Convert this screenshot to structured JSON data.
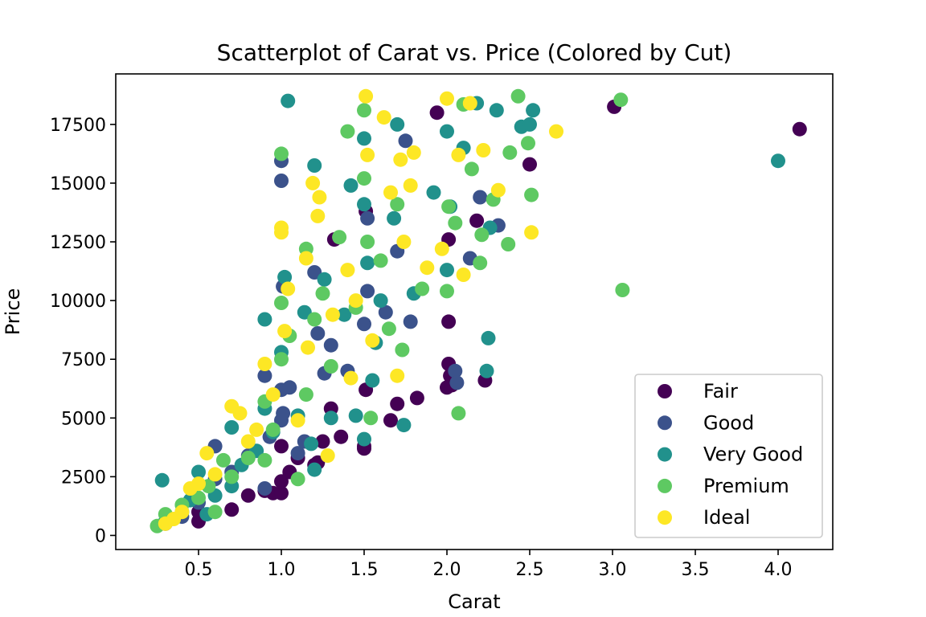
{
  "chart_data": {
    "type": "scatter",
    "title": "Scatterplot of Carat vs. Price (Colored by Cut)",
    "xlabel": "Carat",
    "ylabel": "Price",
    "xlim": [
      0.0,
      4.33
    ],
    "ylim": [
      -600,
      19650
    ],
    "xticks": [
      0.5,
      1.0,
      1.5,
      2.0,
      2.5,
      3.0,
      3.5,
      4.0
    ],
    "xtick_labels": [
      "0.5",
      "1.0",
      "1.5",
      "2.0",
      "2.5",
      "3.0",
      "3.5",
      "4.0"
    ],
    "yticks": [
      0,
      2500,
      5000,
      7500,
      10000,
      12500,
      15000,
      17500
    ],
    "ytick_labels": [
      "0",
      "2500",
      "5000",
      "7500",
      "10000",
      "12500",
      "15000",
      "17500"
    ],
    "grid": false,
    "legend_position": "lower-right",
    "series": [
      {
        "name": "Fair",
        "color": "#440154",
        "points": [
          [
            0.5,
            600
          ],
          [
            0.5,
            1000
          ],
          [
            0.7,
            1100
          ],
          [
            0.8,
            1700
          ],
          [
            0.9,
            1900
          ],
          [
            0.95,
            1800
          ],
          [
            1.0,
            1800
          ],
          [
            1.0,
            2300
          ],
          [
            1.0,
            3800
          ],
          [
            1.05,
            2700
          ],
          [
            1.1,
            3300
          ],
          [
            1.2,
            3000
          ],
          [
            1.22,
            3100
          ],
          [
            1.25,
            4000
          ],
          [
            1.3,
            5400
          ],
          [
            1.32,
            12600
          ],
          [
            1.36,
            4200
          ],
          [
            1.5,
            3700
          ],
          [
            1.5,
            3800
          ],
          [
            1.51,
            6200
          ],
          [
            1.51,
            13800
          ],
          [
            1.66,
            4900
          ],
          [
            1.7,
            5600
          ],
          [
            1.82,
            5850
          ],
          [
            1.94,
            18000
          ],
          [
            2.0,
            6300
          ],
          [
            2.01,
            7300
          ],
          [
            2.01,
            9100
          ],
          [
            2.01,
            12600
          ],
          [
            2.02,
            6800
          ],
          [
            2.03,
            6400
          ],
          [
            2.18,
            13400
          ],
          [
            2.23,
            6600
          ],
          [
            2.5,
            15800
          ],
          [
            3.01,
            18250
          ],
          [
            4.13,
            17300
          ]
        ]
      },
      {
        "name": "Good",
        "color": "#3b528b",
        "points": [
          [
            0.3,
            500
          ],
          [
            0.4,
            800
          ],
          [
            0.5,
            1400
          ],
          [
            0.6,
            2400
          ],
          [
            0.6,
            3800
          ],
          [
            0.7,
            2700
          ],
          [
            0.8,
            3400
          ],
          [
            0.9,
            2000
          ],
          [
            0.9,
            6800
          ],
          [
            0.93,
            4200
          ],
          [
            1.0,
            15100
          ],
          [
            1.0,
            15950
          ],
          [
            1.0,
            6200
          ],
          [
            1.0,
            4900
          ],
          [
            1.01,
            10600
          ],
          [
            1.05,
            6300
          ],
          [
            1.1,
            3500
          ],
          [
            1.14,
            4000
          ],
          [
            1.2,
            11200
          ],
          [
            1.22,
            8600
          ],
          [
            1.26,
            6900
          ],
          [
            1.3,
            8100
          ],
          [
            1.4,
            7000
          ],
          [
            1.5,
            9000
          ],
          [
            1.52,
            10400
          ],
          [
            1.52,
            13500
          ],
          [
            1.63,
            9500
          ],
          [
            1.7,
            12100
          ],
          [
            1.75,
            16800
          ],
          [
            1.78,
            9100
          ],
          [
            2.05,
            7000
          ],
          [
            2.14,
            11800
          ],
          [
            2.2,
            14400
          ],
          [
            2.31,
            13200
          ],
          [
            2.06,
            6500
          ],
          [
            1.01,
            5200
          ]
        ]
      },
      {
        "name": "Very Good",
        "color": "#21918c",
        "points": [
          [
            0.28,
            2350
          ],
          [
            0.3,
            600
          ],
          [
            0.4,
            1000
          ],
          [
            0.45,
            1500
          ],
          [
            0.5,
            2700
          ],
          [
            0.6,
            1700
          ],
          [
            0.7,
            2100
          ],
          [
            0.7,
            4600
          ],
          [
            0.76,
            3000
          ],
          [
            0.85,
            3600
          ],
          [
            0.9,
            5400
          ],
          [
            0.9,
            9200
          ],
          [
            0.95,
            4400
          ],
          [
            1.0,
            7800
          ],
          [
            1.02,
            11000
          ],
          [
            1.04,
            18500
          ],
          [
            1.1,
            5100
          ],
          [
            1.14,
            9500
          ],
          [
            1.18,
            3900
          ],
          [
            1.2,
            2800
          ],
          [
            1.2,
            15750
          ],
          [
            1.26,
            10900
          ],
          [
            1.3,
            5000
          ],
          [
            1.38,
            9400
          ],
          [
            1.42,
            14900
          ],
          [
            1.45,
            5100
          ],
          [
            1.5,
            14100
          ],
          [
            1.5,
            16900
          ],
          [
            1.52,
            11600
          ],
          [
            1.57,
            8200
          ],
          [
            1.6,
            10000
          ],
          [
            1.68,
            13500
          ],
          [
            1.7,
            17500
          ],
          [
            1.74,
            4700
          ],
          [
            1.8,
            10300
          ],
          [
            1.92,
            14600
          ],
          [
            2.0,
            17200
          ],
          [
            2.0,
            11300
          ],
          [
            2.02,
            14000
          ],
          [
            2.1,
            16500
          ],
          [
            2.24,
            7000
          ],
          [
            2.25,
            8400
          ],
          [
            2.26,
            13100
          ],
          [
            2.3,
            18100
          ],
          [
            2.18,
            18400
          ],
          [
            2.45,
            17400
          ],
          [
            2.5,
            17500
          ],
          [
            2.52,
            18100
          ],
          [
            4.0,
            15950
          ],
          [
            1.5,
            4100
          ],
          [
            1.55,
            6600
          ],
          [
            0.55,
            900
          ]
        ]
      },
      {
        "name": "Premium",
        "color": "#5ec962",
        "points": [
          [
            0.25,
            400
          ],
          [
            0.3,
            900
          ],
          [
            0.4,
            1300
          ],
          [
            0.5,
            1600
          ],
          [
            0.56,
            2100
          ],
          [
            0.6,
            1000
          ],
          [
            0.7,
            2500
          ],
          [
            0.8,
            3300
          ],
          [
            0.9,
            3200
          ],
          [
            0.9,
            5700
          ],
          [
            0.95,
            4500
          ],
          [
            1.0,
            16250
          ],
          [
            1.0,
            9900
          ],
          [
            1.0,
            7500
          ],
          [
            1.05,
            8500
          ],
          [
            1.1,
            2400
          ],
          [
            1.15,
            12200
          ],
          [
            1.2,
            9200
          ],
          [
            1.25,
            10300
          ],
          [
            1.3,
            7200
          ],
          [
            1.35,
            12700
          ],
          [
            1.4,
            17200
          ],
          [
            1.45,
            9700
          ],
          [
            1.5,
            18100
          ],
          [
            1.5,
            15200
          ],
          [
            1.52,
            12500
          ],
          [
            1.54,
            5000
          ],
          [
            1.6,
            11700
          ],
          [
            1.65,
            8800
          ],
          [
            1.7,
            14100
          ],
          [
            1.73,
            7900
          ],
          [
            1.85,
            10500
          ],
          [
            2.0,
            10400
          ],
          [
            2.01,
            14000
          ],
          [
            2.05,
            13300
          ],
          [
            2.07,
            5200
          ],
          [
            2.15,
            15600
          ],
          [
            2.2,
            11600
          ],
          [
            2.28,
            14300
          ],
          [
            2.37,
            12400
          ],
          [
            2.43,
            18700
          ],
          [
            2.49,
            16700
          ],
          [
            2.51,
            14500
          ],
          [
            2.38,
            16300
          ],
          [
            3.05,
            18550
          ],
          [
            3.06,
            10450
          ],
          [
            1.15,
            6000
          ],
          [
            0.65,
            3200
          ],
          [
            2.1,
            18350
          ],
          [
            2.21,
            12800
          ]
        ]
      },
      {
        "name": "Ideal",
        "color": "#fde725",
        "points": [
          [
            0.3,
            500
          ],
          [
            0.35,
            700
          ],
          [
            0.4,
            1000
          ],
          [
            0.45,
            2000
          ],
          [
            0.5,
            2200
          ],
          [
            0.55,
            3500
          ],
          [
            0.6,
            2600
          ],
          [
            0.7,
            5500
          ],
          [
            0.75,
            5200
          ],
          [
            0.8,
            4000
          ],
          [
            0.9,
            7300
          ],
          [
            0.95,
            6000
          ],
          [
            1.0,
            12900
          ],
          [
            1.0,
            13100
          ],
          [
            1.02,
            8700
          ],
          [
            1.04,
            10500
          ],
          [
            1.1,
            4900
          ],
          [
            1.15,
            11800
          ],
          [
            1.19,
            15000
          ],
          [
            1.22,
            13600
          ],
          [
            1.23,
            14400
          ],
          [
            1.28,
            3400
          ],
          [
            1.31,
            9400
          ],
          [
            1.4,
            11300
          ],
          [
            1.42,
            6700
          ],
          [
            1.45,
            10000
          ],
          [
            1.51,
            18700
          ],
          [
            1.52,
            16200
          ],
          [
            1.55,
            8300
          ],
          [
            1.62,
            17800
          ],
          [
            1.66,
            14600
          ],
          [
            1.72,
            16000
          ],
          [
            1.74,
            12500
          ],
          [
            1.78,
            14900
          ],
          [
            1.8,
            16300
          ],
          [
            1.88,
            11400
          ],
          [
            1.97,
            12200
          ],
          [
            2.0,
            18600
          ],
          [
            2.07,
            16200
          ],
          [
            2.1,
            11100
          ],
          [
            2.14,
            18400
          ],
          [
            2.22,
            16400
          ],
          [
            2.31,
            14700
          ],
          [
            2.51,
            12900
          ],
          [
            2.66,
            17200
          ],
          [
            1.7,
            6800
          ],
          [
            1.16,
            8000
          ],
          [
            0.85,
            4500
          ]
        ]
      }
    ]
  }
}
